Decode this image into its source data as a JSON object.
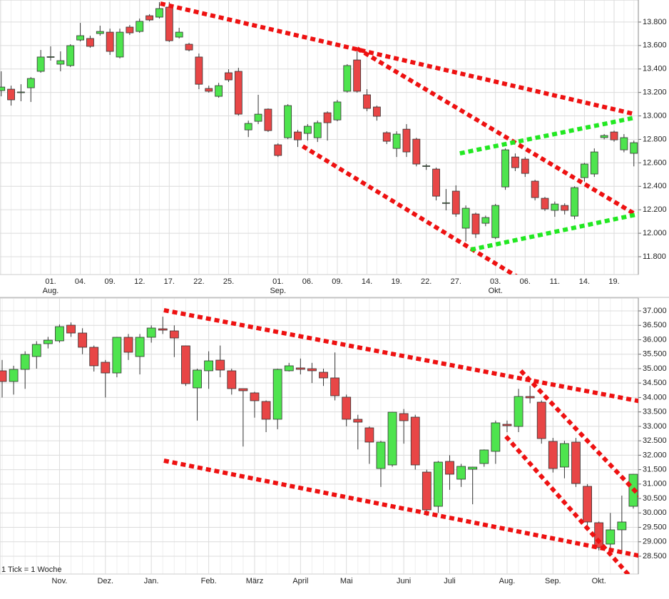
{
  "chart_data": [
    {
      "type": "candlestick",
      "categories": [
        null,
        null,
        null,
        null,
        null,
        "01.",
        null,
        null,
        "04.",
        null,
        null,
        "09.",
        null,
        null,
        "12.",
        null,
        null,
        "17.",
        null,
        null,
        "22.",
        null,
        null,
        "25.",
        null,
        null,
        null,
        null,
        "01.",
        null,
        null,
        "06.",
        null,
        null,
        "09.",
        null,
        null,
        "14.",
        null,
        null,
        "19.",
        null,
        null,
        "22.",
        null,
        null,
        "27.",
        null,
        null,
        null,
        "03.",
        null,
        null,
        "06.",
        null,
        null,
        "11.",
        null,
        null,
        "14.",
        null,
        null,
        "19.",
        null,
        null
      ],
      "category_months": [
        null,
        null,
        null,
        null,
        null,
        "Aug.",
        null,
        null,
        null,
        null,
        null,
        null,
        null,
        null,
        null,
        null,
        null,
        null,
        null,
        null,
        null,
        null,
        null,
        null,
        null,
        null,
        null,
        null,
        "Sep.",
        null,
        null,
        null,
        null,
        null,
        null,
        null,
        null,
        null,
        null,
        null,
        null,
        null,
        null,
        null,
        null,
        null,
        null,
        null,
        null,
        null,
        "Okt.",
        null,
        null,
        null,
        null,
        null,
        null,
        null,
        null,
        null,
        null,
        null,
        null,
        null,
        null
      ],
      "open": [
        13216,
        13228,
        13200,
        13240,
        13380,
        13500,
        13441,
        13429,
        13647,
        13660,
        13702,
        13714,
        13502,
        13757,
        13720,
        13854,
        13842,
        13927,
        13672,
        13611,
        13502,
        13234,
        13167,
        13368,
        13380,
        12881,
        12954,
        13058,
        12754,
        12814,
        12863,
        12851,
        12814,
        13027,
        12966,
        13210,
        13477,
        13180,
        13076,
        12857,
        12723,
        12887,
        12802,
        12571,
        12547,
        12255,
        12359,
        12043,
        12164,
        12085,
        11963,
        12395,
        12650,
        12632,
        12444,
        12298,
        12195,
        12237,
        12146,
        12474,
        12505,
        12815,
        12863,
        12711,
        12681
      ],
      "high": [
        13380,
        13258,
        13270,
        13331,
        13562,
        13593,
        13550,
        13611,
        13793,
        13684,
        13769,
        13744,
        13744,
        13775,
        13830,
        13867,
        13970,
        13970,
        13751,
        13623,
        13532,
        13258,
        13282,
        13398,
        13410,
        12960,
        13180,
        13064,
        12766,
        13100,
        12881,
        12930,
        12960,
        13039,
        13137,
        13441,
        13550,
        13228,
        13088,
        12869,
        12869,
        12930,
        12814,
        12590,
        12560,
        12377,
        12408,
        12237,
        12176,
        12150,
        12250,
        12723,
        12680,
        12650,
        12456,
        12310,
        12270,
        12255,
        12400,
        12600,
        12723,
        12845,
        12875,
        12845,
        12790
      ],
      "low": [
        13167,
        13088,
        13125,
        13119,
        13368,
        13471,
        13380,
        13417,
        13635,
        13581,
        13684,
        13520,
        13490,
        13690,
        13708,
        13806,
        13830,
        13630,
        13660,
        13550,
        13228,
        13198,
        13155,
        13289,
        13003,
        12820,
        12930,
        12863,
        12650,
        12802,
        12735,
        12790,
        12778,
        12790,
        12954,
        13198,
        13198,
        13040,
        12960,
        12760,
        12650,
        12650,
        12570,
        12540,
        12280,
        12195,
        12140,
        11930,
        11960,
        12060,
        11950,
        12370,
        12530,
        12480,
        12280,
        12190,
        12140,
        12160,
        12120,
        12440,
        12480,
        12800,
        12780,
        12690,
        12570
      ],
      "close": [
        13246,
        13137,
        13204,
        13319,
        13502,
        13505,
        13471,
        13599,
        13684,
        13593,
        13720,
        13550,
        13714,
        13708,
        13806,
        13818,
        13915,
        13641,
        13714,
        13562,
        13270,
        13210,
        13258,
        13307,
        13015,
        12936,
        13015,
        12875,
        12663,
        13088,
        12796,
        12912,
        12942,
        12942,
        13119,
        13429,
        13210,
        13064,
        12997,
        12784,
        12845,
        12693,
        12590,
        12575,
        12316,
        12260,
        12164,
        12213,
        11994,
        12134,
        12237,
        12711,
        12559,
        12510,
        12304,
        12207,
        12249,
        12195,
        12389,
        12590,
        12693,
        12833,
        12796,
        12815,
        12772
      ],
      "up_color": "#4ee44e",
      "down_color": "#e84646",
      "ylim": [
        11648,
        13988
      ],
      "yticks": [
        {
          "value": 11800,
          "label": "11.800"
        },
        {
          "value": 12000,
          "label": "12.000"
        },
        {
          "value": 12200,
          "label": "12.200"
        },
        {
          "value": 12400,
          "label": "12.400"
        },
        {
          "value": 12600,
          "label": "12.600"
        },
        {
          "value": 12800,
          "label": "12.800"
        },
        {
          "value": 13000,
          "label": "13.000"
        },
        {
          "value": 13200,
          "label": "13.200"
        },
        {
          "value": 13400,
          "label": "13.400"
        },
        {
          "value": 13600,
          "label": "13.600"
        },
        {
          "value": 13800,
          "label": "13.800"
        }
      ],
      "grid": true,
      "trendlines": [
        {
          "color": "#ee1111",
          "points": [
            [
              16.1,
              13958
            ],
            [
              64.1,
              13015
            ]
          ]
        },
        {
          "color": "#ee1111",
          "points": [
            [
              36.0,
              13575
            ],
            [
              64.1,
              12164
            ]
          ]
        },
        {
          "color": "#ee1111",
          "points": [
            [
              30.5,
              12742
            ],
            [
              55.4,
              11465
            ]
          ]
        },
        {
          "color": "#22e822",
          "points": [
            [
              46.4,
              12681
            ],
            [
              64.1,
              12985
            ]
          ]
        },
        {
          "color": "#22e822",
          "points": [
            [
              47.5,
              11860
            ],
            [
              65.2,
              12176
            ]
          ]
        }
      ]
    },
    {
      "type": "candlestick",
      "categories": [
        null,
        null,
        null,
        null,
        null,
        "Nov.",
        null,
        null,
        null,
        "Dez.",
        null,
        null,
        null,
        "Jan.",
        null,
        null,
        null,
        null,
        "Feb.",
        null,
        null,
        null,
        "März",
        null,
        null,
        null,
        "April",
        null,
        null,
        null,
        "Mai",
        null,
        null,
        null,
        null,
        "Juni",
        null,
        null,
        null,
        "Juli",
        null,
        null,
        null,
        null,
        "Aug.",
        null,
        null,
        null,
        "Sep.",
        null,
        null,
        null,
        "Okt.",
        null,
        null,
        null
      ],
      "open": [
        34925,
        34554,
        34974,
        35419,
        35864,
        35962,
        36506,
        36234,
        35740,
        35221,
        34850,
        36086,
        35419,
        36086,
        36382,
        36308,
        35790,
        34332,
        34925,
        35295,
        34925,
        34307,
        34159,
        33862,
        33245,
        34925,
        35024,
        34999,
        34875,
        34678,
        34011,
        33245,
        32948,
        31539,
        31663,
        33442,
        33319,
        31415,
        30229,
        31786,
        31168,
        31514,
        31712,
        32133,
        33071,
        32997,
        34035,
        33838,
        32478,
        31589,
        32454,
        30921,
        29661,
        28920,
        29414,
        30229
      ],
      "high": [
        35300,
        35100,
        35600,
        35950,
        36100,
        36530,
        36600,
        36400,
        35800,
        35300,
        36100,
        36200,
        36200,
        36500,
        36800,
        36500,
        35800,
        35000,
        35600,
        35800,
        35000,
        34300,
        34200,
        33900,
        35000,
        35200,
        35350,
        35200,
        35000,
        35560,
        34100,
        33400,
        33000,
        32500,
        33500,
        33600,
        33400,
        31500,
        31800,
        32000,
        31700,
        31600,
        32200,
        33200,
        33200,
        34300,
        34400,
        33900,
        32600,
        32500,
        32600,
        31000,
        29700,
        30000,
        30600,
        31350
      ],
      "low": [
        34000,
        34100,
        34300,
        35000,
        35700,
        35900,
        36100,
        35500,
        34900,
        34000,
        34700,
        35300,
        34800,
        35900,
        36200,
        35400,
        34400,
        33200,
        34300,
        34700,
        34100,
        32300,
        33300,
        32800,
        32900,
        34900,
        34800,
        34500,
        34400,
        33900,
        33000,
        32200,
        31700,
        30900,
        31600,
        32400,
        31500,
        29900,
        30000,
        30800,
        30900,
        30300,
        31600,
        31700,
        32800,
        32800,
        33800,
        32400,
        31400,
        31200,
        30900,
        29500,
        28700,
        28750,
        28600,
        30150
      ],
      "close": [
        34554,
        34974,
        35493,
        35839,
        35987,
        36456,
        36234,
        35740,
        35098,
        34850,
        36086,
        35567,
        36086,
        36407,
        36333,
        36061,
        34480,
        34950,
        35270,
        34950,
        34307,
        34233,
        33887,
        33245,
        34975,
        35098,
        34975,
        34925,
        34678,
        34060,
        33245,
        33145,
        32454,
        32454,
        33491,
        33195,
        31663,
        30106,
        31761,
        31341,
        31613,
        31588,
        32182,
        33121,
        33022,
        34035,
        33986,
        32577,
        31539,
        32404,
        31020,
        29686,
        28796,
        29414,
        29686,
        31341
      ],
      "up_color": "#4ee44e",
      "down_color": "#e84646",
      "ylim": [
        27882,
        37445
      ],
      "yticks": [
        {
          "value": 28500,
          "label": "28.500"
        },
        {
          "value": 29000,
          "label": "29.000"
        },
        {
          "value": 29500,
          "label": "29.500"
        },
        {
          "value": 30000,
          "label": "30.000"
        },
        {
          "value": 30500,
          "label": "30.500"
        },
        {
          "value": 31000,
          "label": "31.000"
        },
        {
          "value": 31500,
          "label": "31.500"
        },
        {
          "value": 32000,
          "label": "32.000"
        },
        {
          "value": 32500,
          "label": "32.500"
        },
        {
          "value": 33000,
          "label": "33.000"
        },
        {
          "value": 33500,
          "label": "33.500"
        },
        {
          "value": 34000,
          "label": "34.000"
        },
        {
          "value": 34500,
          "label": "34.500"
        },
        {
          "value": 35000,
          "label": "35.000"
        },
        {
          "value": 35500,
          "label": "35.500"
        },
        {
          "value": 36000,
          "label": "36.000"
        },
        {
          "value": 36500,
          "label": "36.500"
        },
        {
          "value": 37000,
          "label": "37.000"
        }
      ],
      "grid": true,
      "annotation": "1 Tick = 1 Woche",
      "trendlines": [
        {
          "color": "#ee1111",
          "points": [
            [
              14.1,
              37025
            ],
            [
              57.3,
              33738
            ]
          ]
        },
        {
          "color": "#ee1111",
          "points": [
            [
              14.1,
              31811
            ],
            [
              57.3,
              28376
            ]
          ]
        },
        {
          "color": "#ee1111",
          "points": [
            [
              45.2,
              34925
            ],
            [
              57.9,
              29612
            ]
          ]
        },
        {
          "color": "#ee1111",
          "points": [
            [
              43.9,
              32651
            ],
            [
              54.8,
              27759
            ]
          ]
        }
      ]
    }
  ]
}
